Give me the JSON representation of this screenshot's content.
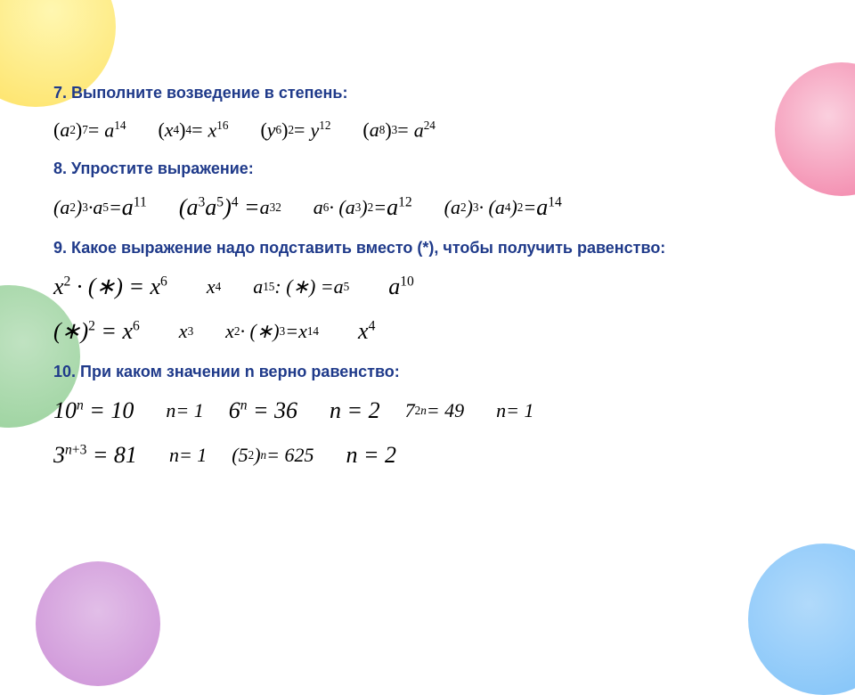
{
  "colors": {
    "heading": "#1f3a8a",
    "text": "#000000",
    "background": "#ffffff"
  },
  "typography": {
    "heading_family": "Arial",
    "heading_size_pt": 14,
    "heading_weight": "bold",
    "math_family": "Times New Roman",
    "math_size_pt": 16,
    "math_style": "italic"
  },
  "decorative_circles": [
    {
      "pos": "top-left",
      "color": "#fdd835"
    },
    {
      "pos": "mid-left",
      "color": "#66bb6a"
    },
    {
      "pos": "top-right",
      "color": "#ec407a"
    },
    {
      "pos": "bottom-right",
      "color": "#42a5f5"
    },
    {
      "pos": "bottom-left",
      "color": "#ab47bc"
    }
  ],
  "s7": {
    "title": "7. Выполните возведение в степень:",
    "items": [
      {
        "lhs_base": "a",
        "lhs_inner": "2",
        "lhs_outer": "7",
        "rhs_base": "a",
        "rhs_exp": "14"
      },
      {
        "lhs_base": "x",
        "lhs_inner": "4",
        "lhs_outer": "4",
        "rhs_base": "x",
        "rhs_exp": "16"
      },
      {
        "lhs_base": "y",
        "lhs_inner": "6",
        "lhs_outer": "2",
        "rhs_base": "y",
        "rhs_exp": "12"
      },
      {
        "lhs_base": "a",
        "lhs_inner": "8",
        "lhs_outer": "3",
        "rhs_base": "a",
        "rhs_exp": "24"
      }
    ]
  },
  "s8": {
    "title": "8. Упростите выражение:",
    "items": [
      {
        "text_html": "(<i>a</i><sup>2</sup>)<sup>3</sup> · <i>a</i><sup>5</sup> = <span class='big'><i>a</i><sup>11</sup></span>"
      },
      {
        "text_html": "<span class='big'>(<i>a</i><sup>3</sup><i>a</i><sup>5</sup>)<sup>4</sup> =</span> <i>a</i><sup>32</sup>"
      },
      {
        "text_html": "<i>a</i><sup>6</sup> · (<i>a</i><sup>3</sup>)<sup>2</sup> = <span class='big'><i>a</i><sup>12</sup></span>"
      },
      {
        "text_html": "(<i>a</i><sup>2</sup>)<sup>3</sup> · (<i>a</i><sup>4</sup>)<sup>2</sup> = <span class='big'><i>a</i><sup>14</sup></span>"
      }
    ]
  },
  "s9": {
    "title": "9. Какое выражение надо подставить вместо (*),  чтобы получить равенство:",
    "row1": [
      {
        "eq": "<span class='big'><i>x</i><sup>2</sup> · (∗) = <i>x</i><sup>6</sup></span>",
        "ans": "<i>x</i><sup>4</sup>"
      },
      {
        "eq": "<i>a</i><sup>15</sup> : (∗) = <i>a</i><sup>5</sup>",
        "ans": "<span class='big'><i>a</i><sup>10</sup></span>"
      }
    ],
    "row2": [
      {
        "eq": "<span class='big'>(∗)<sup>2</sup> = <i>x</i><sup>6</sup></span>",
        "ans": "<i>x</i><sup>3</sup>"
      },
      {
        "eq": "<i>x</i><sup>2</sup> · (∗)<sup>3</sup> = <i>x</i><sup>14</sup>",
        "ans": "<span class='big'><i>x</i><sup>4</sup></span>"
      }
    ]
  },
  "s10": {
    "title": "10. При каком значении n верно равенство:",
    "row1": [
      {
        "eq": "<span class='big'>10<sup><i>n</i></sup> = 10</span>",
        "ans": "<i>n</i> = 1"
      },
      {
        "eq": "<span class='big'>6<sup><i>n</i></sup> = 36</span>",
        "ans": "<span class='big'><i>n</i> = 2</span>"
      },
      {
        "eq": "7<sup>2<i>n</i></sup> = 49",
        "ans": "<i>n</i> = 1"
      }
    ],
    "row2": [
      {
        "eq": "<span class='big'>3<sup><i>n</i>+3</sup> = 81</span>",
        "ans": "<i>n</i> = 1"
      },
      {
        "eq": "(5<sup>2</sup>)<sup><i>n</i></sup> = 625",
        "ans": "<span class='big'><i>n</i> = 2</span>"
      }
    ]
  }
}
